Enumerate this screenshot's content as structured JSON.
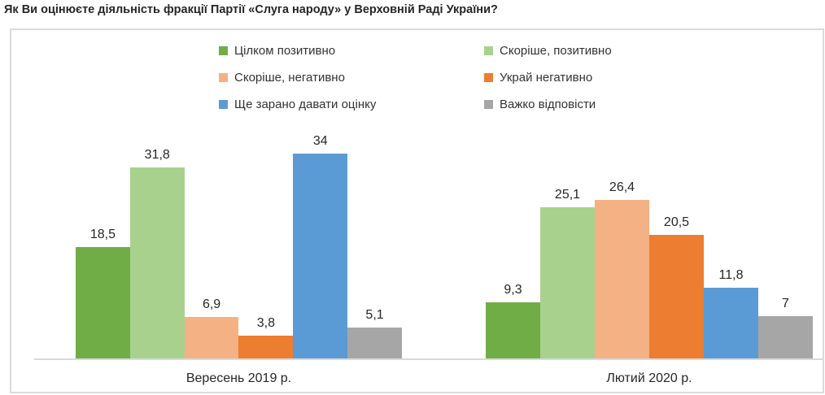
{
  "title": "Як Ви оцінюєте діяльність фракції Партії «Слуга народу» у Верховній Раді України?",
  "colors": {
    "frame_border": "#DBDBDB",
    "axis_line": "#D9D9D9",
    "text": "#262626"
  },
  "chart_data": {
    "type": "bar",
    "title": "Як Ви оцінюєте діяльність фракції Партії «Слуга народу» у Верховній Раді України?",
    "categories": [
      "Вересень 2019 р.",
      "Лютий 2020 р."
    ],
    "category_keys": [
      "sep-2019",
      "feb-2020"
    ],
    "series": [
      {
        "key": "fully-positive",
        "name": "Цілком позитивно",
        "color": "#70AD47",
        "values": [
          18.5,
          9.3
        ],
        "labels": [
          "18,5",
          "9,3"
        ]
      },
      {
        "key": "rather-positive",
        "name": "Скоріше, позитивно",
        "color": "#A9D18E",
        "values": [
          31.8,
          25.1
        ],
        "labels": [
          "31,8",
          "25,1"
        ]
      },
      {
        "key": "rather-negative",
        "name": "Скоріше, негативно",
        "color": "#F4B183",
        "values": [
          6.9,
          26.4
        ],
        "labels": [
          "6,9",
          "26,4"
        ]
      },
      {
        "key": "extremely-negative",
        "name": "Украй негативно",
        "color": "#ED7D31",
        "values": [
          3.8,
          20.5
        ],
        "labels": [
          "3,8",
          "20,5"
        ]
      },
      {
        "key": "too-early-to-assess",
        "name": "Ще зарано давати оцінку",
        "color": "#5B9BD5",
        "values": [
          34,
          11.8
        ],
        "labels": [
          "34",
          "11,8"
        ]
      },
      {
        "key": "hard-to-answer",
        "name": "Важко відповісти",
        "color": "#A6A6A6",
        "values": [
          5.1,
          7
        ],
        "labels": [
          "5,1",
          "7"
        ]
      }
    ],
    "xlabel": "",
    "ylabel": "",
    "ylim": [
      0,
      36
    ],
    "y_axis_visible": false,
    "grid": false,
    "legend_position": "top",
    "legend_columns": 2,
    "value_labels_visible": true,
    "decimal_separator": ","
  }
}
